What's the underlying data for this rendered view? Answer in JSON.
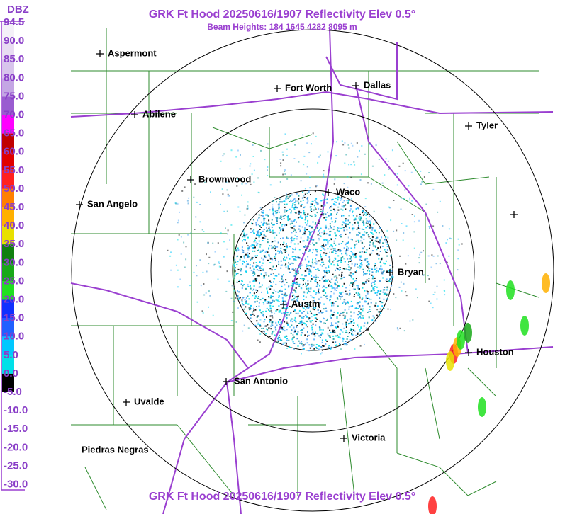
{
  "header": {
    "title": "GRK Ft Hood 20250616/1907 Reflectivity Elev 0.5°",
    "subtitle": "Beam Heights: 184 1645 4282 8095 m",
    "footer": "GRK Ft Hood 20250616/1907 Reflectivity Elev 0.5°"
  },
  "legend": {
    "unit": "DBZ",
    "labels": [
      "94.5",
      "90.0",
      "85.0",
      "80.0",
      "75.0",
      "70.0",
      "65.0",
      "60.0",
      "55.0",
      "50.0",
      "45.0",
      "40.0",
      "35.0",
      "30.0",
      "25.0",
      "20.0",
      "15.0",
      "10.0",
      "5.0",
      "0.0",
      "-5.0",
      "-10.0",
      "-15.0",
      "-20.0",
      "-25.0",
      "-30.0"
    ],
    "colors": [
      "#f4f0f8",
      "#e8dcf2",
      "#d8c4ec",
      "#c4a6e4",
      "#9a5cd0",
      "#ff00ff",
      "#c00000",
      "#e00000",
      "#ff2020",
      "#ff8000",
      "#ffb000",
      "#e8e000",
      "#108010",
      "#18a818",
      "#20e020",
      "#1030ff",
      "#2060ff",
      "#00c8ff",
      "#00e0e8",
      "#000000",
      "#ffffff",
      "#ffffff",
      "#ffffff",
      "#ffffff",
      "#ffffff"
    ]
  },
  "cities": [
    "Aspermont",
    "Abilene",
    "Fort Worth",
    "Dallas",
    "Tyler",
    "Brownwood",
    "San Angelo",
    "Waco",
    "Bryan",
    "Austin",
    "Houston",
    "San Antonio",
    "Uvalde",
    "Victoria",
    "Piedras Negras"
  ]
}
